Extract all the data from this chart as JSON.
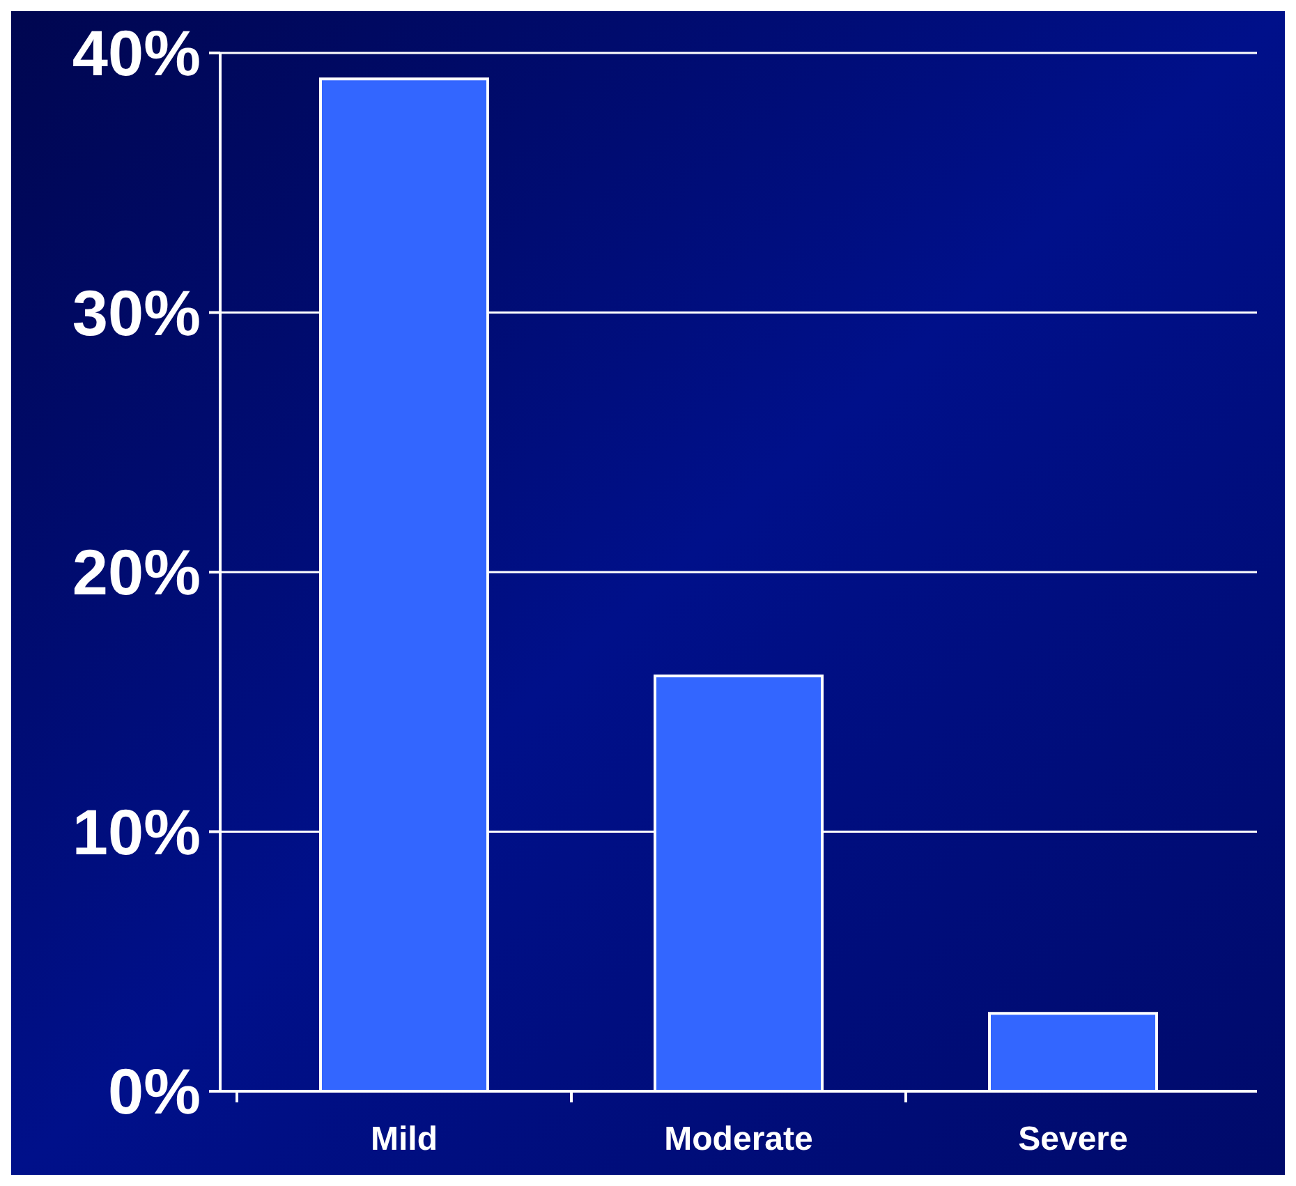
{
  "chart_data": {
    "type": "bar",
    "categories": [
      "Mild",
      "Moderate",
      "Severe"
    ],
    "series": [
      {
        "color": "#3366ff",
        "values": [
          39,
          16,
          3
        ]
      }
    ],
    "ylim": [
      0,
      40
    ],
    "yticks": [
      {
        "value": 0,
        "label": "0%"
      },
      {
        "value": 10,
        "label": "10%"
      },
      {
        "value": 20,
        "label": "20%"
      },
      {
        "value": 30,
        "label": "30%"
      },
      {
        "value": 40,
        "label": "40%"
      }
    ],
    "grid": "y"
  }
}
